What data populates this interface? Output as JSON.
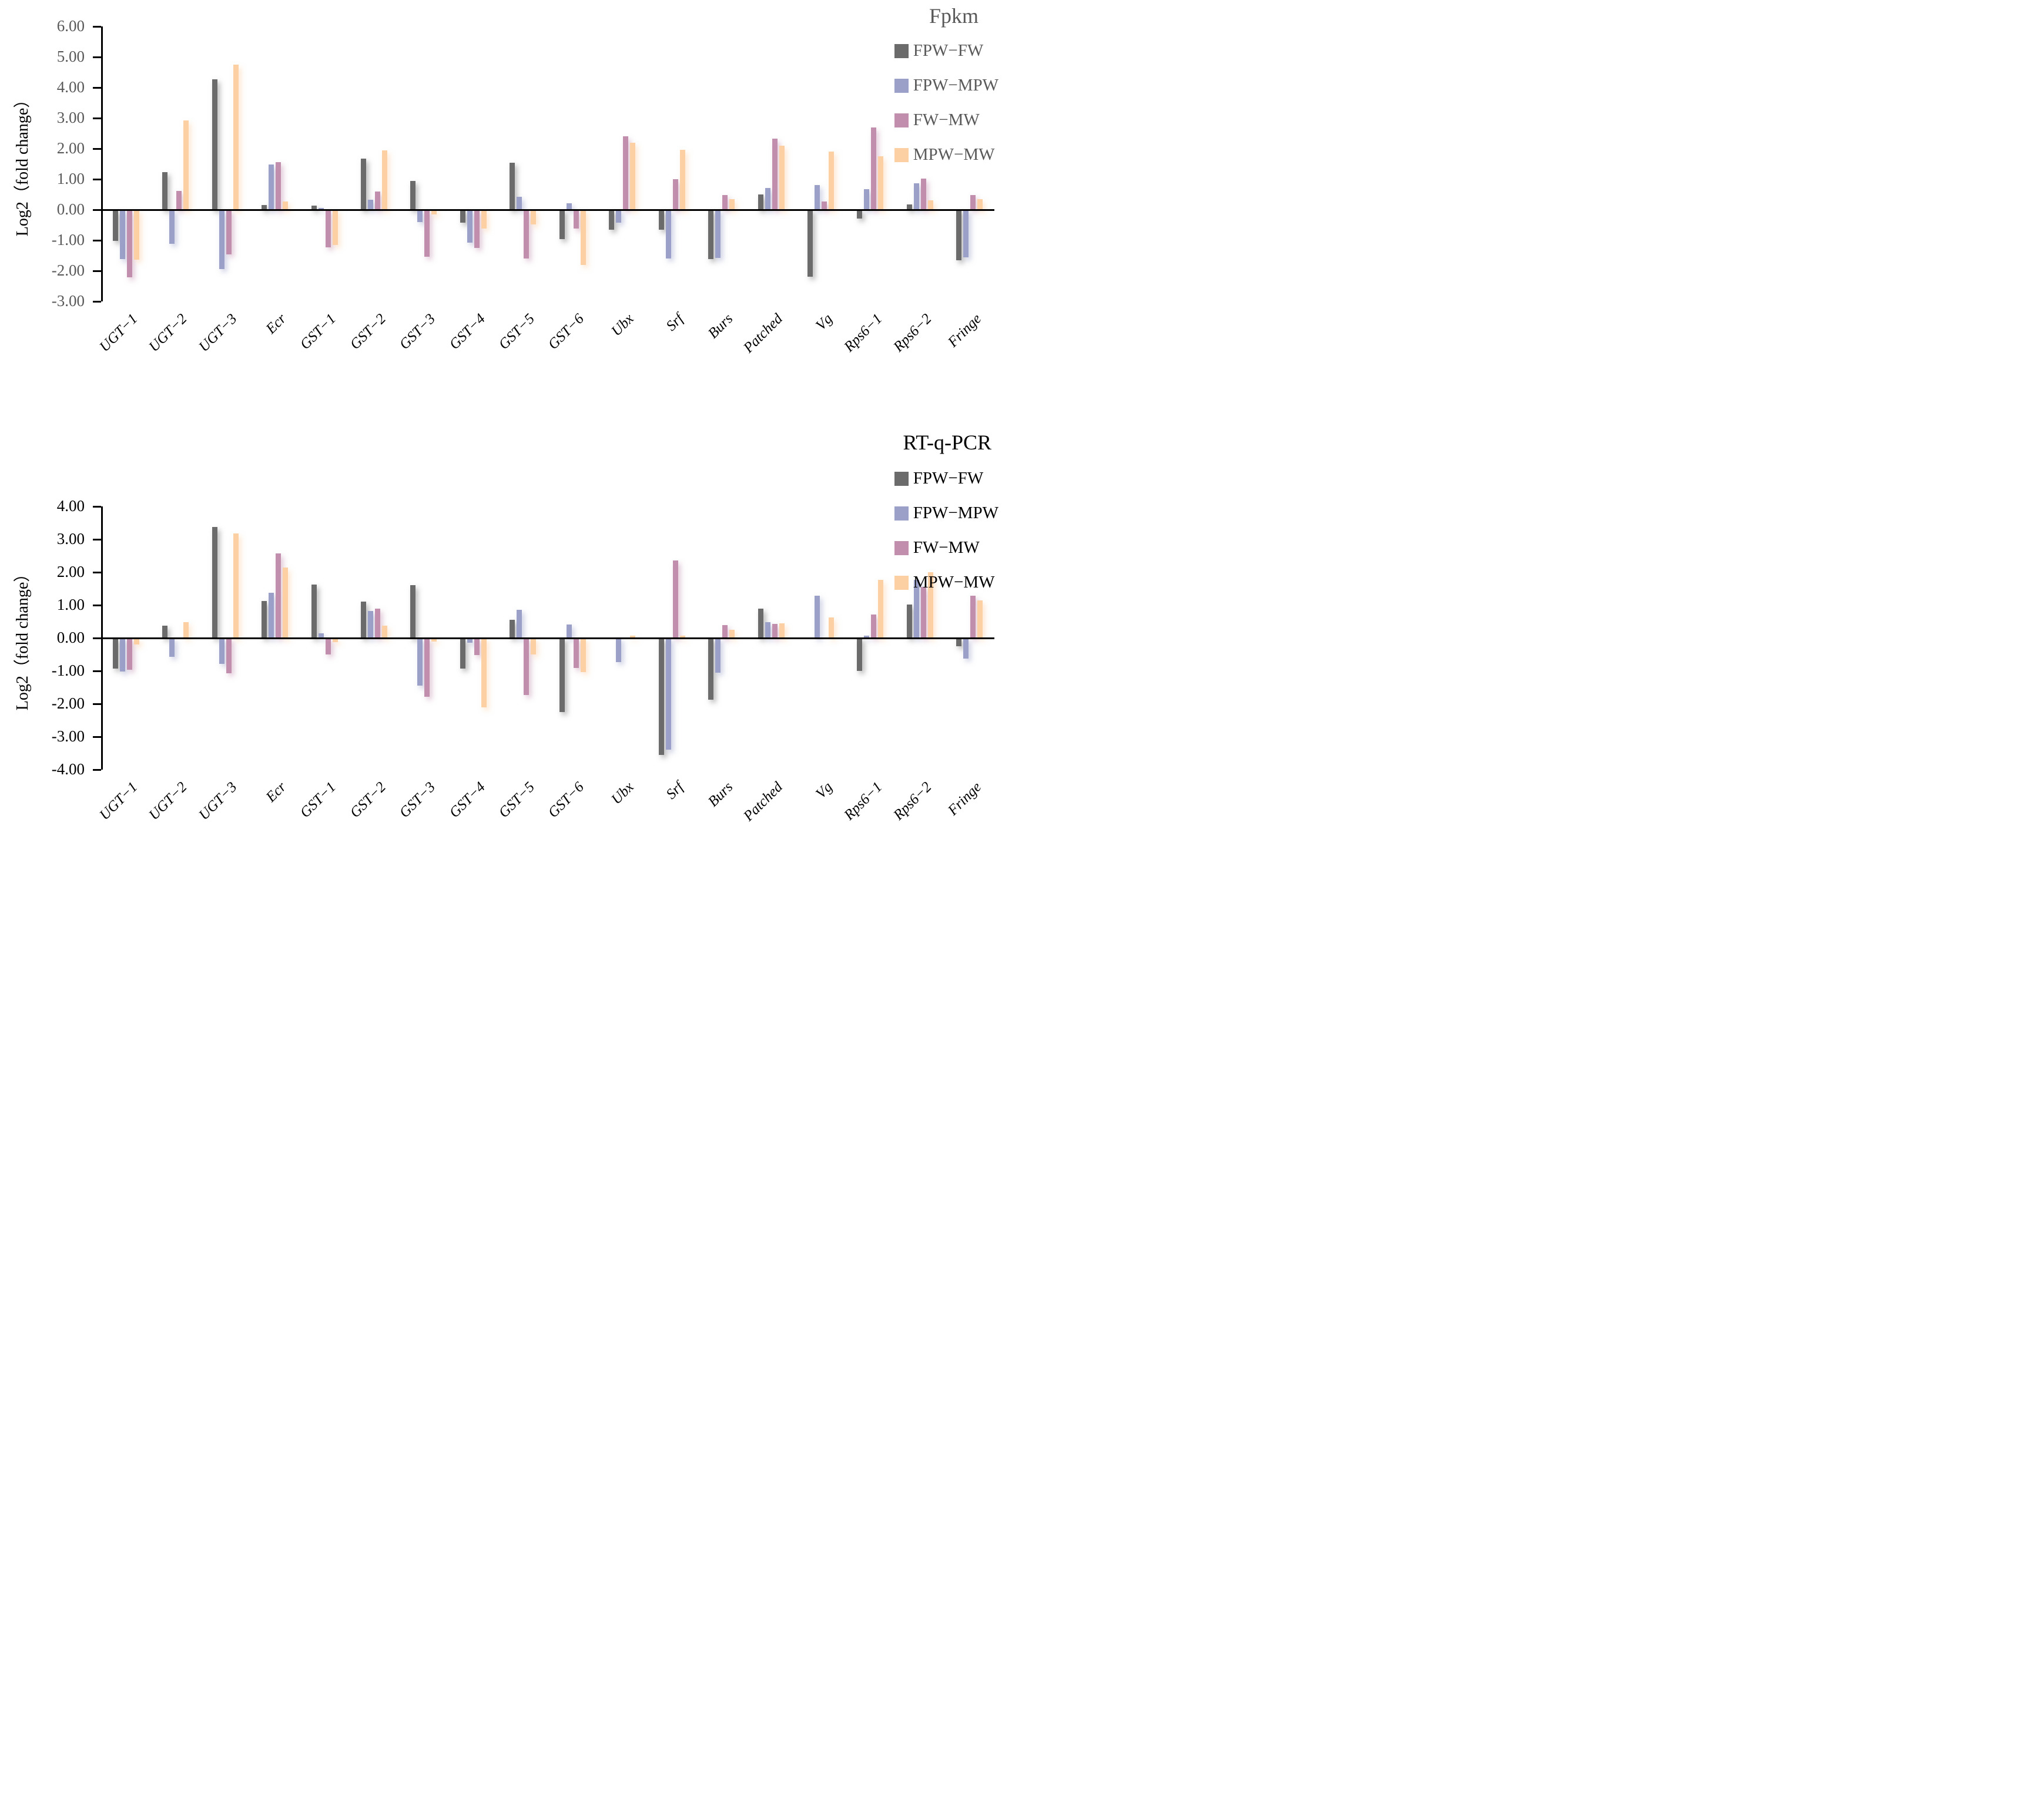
{
  "chart_data": [
    {
      "type": "bar",
      "title": "Fpkm",
      "title_color": "#595959",
      "ylabel": "Log2（fold change）",
      "ylim": [
        -3,
        6
      ],
      "ytick_step": 1,
      "grid": false,
      "legend_position": "top-right",
      "tick_label_color": "#595959",
      "legend_text_color": "#595959",
      "categories": [
        "UGT−1",
        "UGT−2",
        "UGT−3",
        "Ecr",
        "GST−1",
        "GST−2",
        "GST−3",
        "GST−4",
        "GST−5",
        "GST−6",
        "Ubx",
        "Srf",
        "Burs",
        "Patched",
        "Vg",
        "Rps6−1",
        "Rps6−2",
        "Fringe"
      ],
      "series": [
        {
          "name": "FPW−FW",
          "color": "#6b6b6b",
          "values": [
            -1.02,
            1.23,
            4.27,
            0.16,
            0.14,
            1.68,
            0.95,
            -0.43,
            1.53,
            -0.96,
            -0.66,
            -0.65,
            -1.62,
            0.5,
            -2.2,
            -0.28,
            0.18,
            -1.65
          ]
        },
        {
          "name": "FPW−MPW",
          "color": "#9aa0c8",
          "values": [
            -1.61,
            -1.12,
            -1.95,
            1.48,
            0.06,
            0.33,
            -0.4,
            -1.08,
            0.42,
            0.22,
            -0.43,
            -1.6,
            -1.58,
            0.72,
            0.8,
            0.67,
            0.87,
            -1.55
          ]
        },
        {
          "name": "FW−MW",
          "color": "#c18fad",
          "values": [
            -2.22,
            0.61,
            -1.46,
            1.56,
            -1.23,
            0.6,
            -1.53,
            -1.25,
            -1.6,
            -0.62,
            2.4,
            1.0,
            0.48,
            2.32,
            0.27,
            2.7,
            1.02,
            0.48
          ]
        },
        {
          "name": "MPW−MW",
          "color": "#fdd0a4",
          "values": [
            -1.64,
            2.93,
            4.75,
            0.26,
            -1.15,
            1.95,
            -0.16,
            -0.62,
            -0.48,
            -1.81,
            2.2,
            1.97,
            0.35,
            2.1,
            1.9,
            1.75,
            0.31,
            0.34
          ]
        }
      ]
    },
    {
      "type": "bar",
      "title": "RT-q-PCR",
      "title_color": "#000000",
      "ylabel": "Log2（fold change）",
      "ylim": [
        -4,
        4
      ],
      "ytick_step": 1,
      "grid": false,
      "legend_position": "top-right",
      "tick_label_color": "#000000",
      "legend_text_color": "#000000",
      "categories": [
        "UGT−1",
        "UGT−2",
        "UGT−3",
        "Ecr",
        "GST−1",
        "GST−2",
        "GST−3",
        "GST−4",
        "GST−5",
        "GST−6",
        "Ubx",
        "Srf",
        "Burs",
        "Patched",
        "Vg",
        "Rps6−1",
        "Rps6−2",
        "Fringe"
      ],
      "series": [
        {
          "name": "FPW−FW",
          "color": "#6b6b6b",
          "values": [
            -0.92,
            0.38,
            3.37,
            1.12,
            1.62,
            1.11,
            1.6,
            -0.93,
            0.55,
            -2.25,
            0.0,
            -3.56,
            -1.88,
            0.9,
            0.0,
            -1.0,
            1.02,
            -0.25
          ]
        },
        {
          "name": "FPW−MPW",
          "color": "#9aa0c8",
          "values": [
            -1.01,
            -0.58,
            -0.78,
            1.38,
            0.15,
            0.82,
            -1.45,
            -0.14,
            0.85,
            0.41,
            -0.73,
            -3.4,
            -1.05,
            0.48,
            1.28,
            0.07,
            1.76,
            -0.62
          ]
        },
        {
          "name": "FW−MW",
          "color": "#c18fad",
          "values": [
            -0.97,
            0.0,
            -1.08,
            2.58,
            -0.5,
            0.9,
            -1.78,
            -0.51,
            -1.73,
            -0.91,
            0.0,
            2.35,
            0.4,
            0.43,
            0.0,
            0.72,
            1.55,
            1.28
          ]
        },
        {
          "name": "MPW−MW",
          "color": "#fdd0a4",
          "values": [
            -0.2,
            0.49,
            3.18,
            2.15,
            -0.12,
            0.38,
            -0.1,
            -2.1,
            -0.5,
            -1.03,
            0.07,
            0.08,
            0.25,
            0.45,
            0.63,
            1.77,
            2.0,
            1.15
          ]
        }
      ]
    }
  ]
}
